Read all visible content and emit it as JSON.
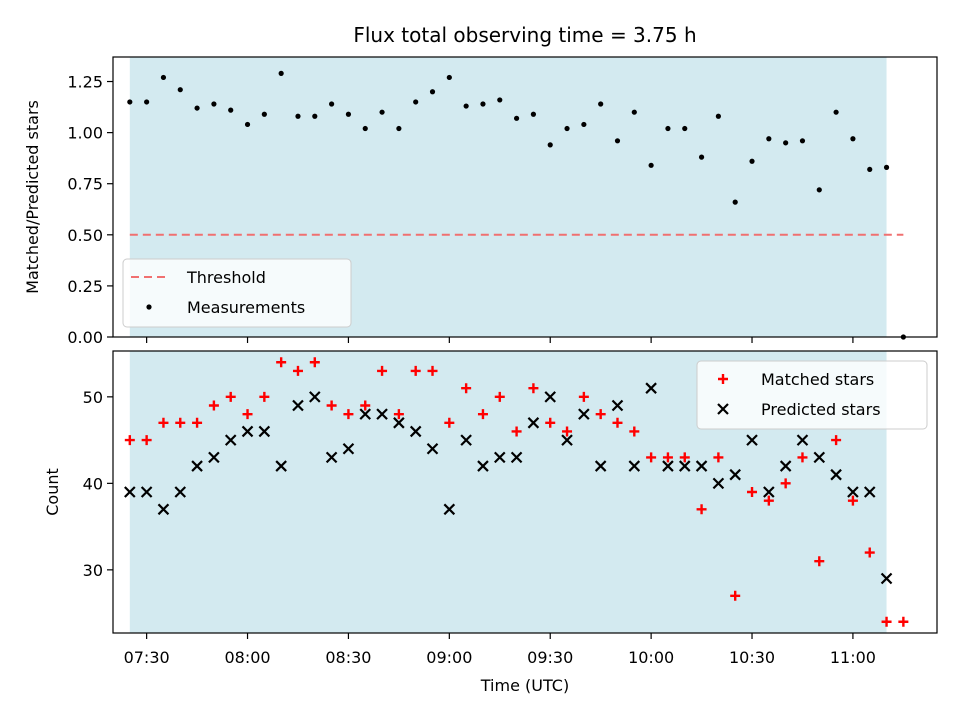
{
  "chart_data": {
    "type": "scatter",
    "title": "Flux total observing time = 3.75 h",
    "xlabel": "Time (UTC)",
    "x_ticks": [
      "07:30",
      "08:00",
      "08:30",
      "09:00",
      "09:30",
      "10:00",
      "10:30",
      "11:00"
    ],
    "x_range": [
      "07:20",
      "11:25"
    ],
    "observing_window": [
      "07:25",
      "11:10"
    ],
    "colors": {
      "observing_window": "#d3eaf0",
      "threshold": "#f07070",
      "measurements": "#000000",
      "matched": "#ff0000",
      "predicted": "#000000"
    },
    "times": [
      "07:25",
      "07:30",
      "07:35",
      "07:40",
      "07:45",
      "07:50",
      "07:55",
      "08:00",
      "08:05",
      "08:10",
      "08:15",
      "08:20",
      "08:25",
      "08:30",
      "08:35",
      "08:40",
      "08:45",
      "08:50",
      "08:55",
      "09:00",
      "09:05",
      "09:10",
      "09:15",
      "09:20",
      "09:25",
      "09:30",
      "09:35",
      "09:40",
      "09:45",
      "09:50",
      "09:55",
      "10:00",
      "10:05",
      "10:10",
      "10:15",
      "10:20",
      "10:25",
      "10:30",
      "10:35",
      "10:40",
      "10:45",
      "10:50",
      "10:55",
      "11:00",
      "11:05",
      "11:10",
      "11:15"
    ],
    "panels": [
      {
        "ylabel": "Matched/Predicted stars",
        "ylim": [
          0,
          1.37
        ],
        "y_ticks": [
          "0.00",
          "0.25",
          "0.50",
          "0.75",
          "1.00",
          "1.25"
        ],
        "legend_position": "lower-left",
        "series": [
          {
            "name": "Threshold",
            "style": "dashed-line",
            "y": 0.5,
            "x_range": [
              "07:25",
              "11:15"
            ]
          },
          {
            "name": "Measurements",
            "style": "dot",
            "values": [
              1.15,
              1.15,
              1.27,
              1.21,
              1.12,
              1.14,
              1.11,
              1.04,
              1.09,
              1.29,
              1.08,
              1.08,
              1.14,
              1.09,
              1.02,
              1.1,
              1.02,
              1.15,
              1.2,
              1.27,
              1.13,
              1.14,
              1.16,
              1.07,
              1.09,
              0.94,
              1.02,
              1.04,
              1.14,
              0.96,
              1.1,
              0.84,
              1.02,
              1.02,
              0.88,
              1.08,
              0.66,
              0.86,
              0.97,
              0.95,
              0.96,
              0.72,
              1.1,
              0.97,
              0.82,
              0.83,
              0.0
            ]
          }
        ]
      },
      {
        "ylabel": "Count",
        "ylim": [
          22.7,
          55.3
        ],
        "y_ticks": [
          "30",
          "40",
          "50"
        ],
        "legend_position": "upper-right",
        "series": [
          {
            "name": "Matched stars",
            "style": "plus",
            "values": [
              45,
              45,
              47,
              47,
              47,
              49,
              50,
              48,
              50,
              54,
              53,
              54,
              49,
              48,
              49,
              53,
              48,
              53,
              53,
              47,
              51,
              48,
              50,
              46,
              51,
              47,
              46,
              50,
              48,
              47,
              46,
              43,
              43,
              43,
              37,
              43,
              27,
              39,
              38,
              40,
              43,
              31,
              45,
              38,
              32,
              24,
              24
            ]
          },
          {
            "name": "Predicted stars",
            "style": "cross",
            "values": [
              39,
              39,
              37,
              39,
              42,
              43,
              45,
              46,
              46,
              42,
              49,
              50,
              43,
              44,
              48,
              48,
              47,
              46,
              44,
              37,
              45,
              42,
              43,
              43,
              47,
              50,
              45,
              48,
              42,
              49,
              42,
              51,
              42,
              42,
              42,
              40,
              41,
              45,
              39,
              42,
              45,
              43,
              41,
              39,
              39,
              29,
              null
            ]
          }
        ]
      }
    ]
  }
}
